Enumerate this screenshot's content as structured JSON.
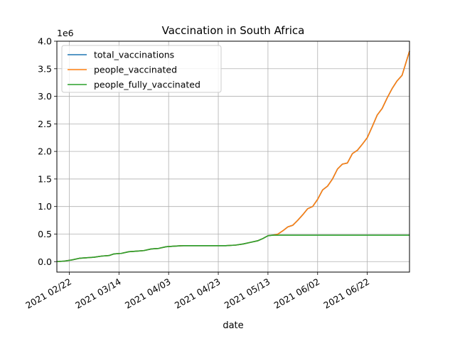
{
  "chart_data": {
    "type": "line",
    "title": "Vaccination in South Africa",
    "xlabel": "date",
    "ylabel": "",
    "y_multiplier_label": "1e6",
    "xlim": [
      "2021-02-17",
      "2021-07-09"
    ],
    "ylim": [
      -0.19,
      4.0
    ],
    "x_ticks": [
      "2021-02-22",
      "2021-03-14",
      "2021-04-03",
      "2021-04-23",
      "2021-05-13",
      "2021-06-02",
      "2021-06-22"
    ],
    "x_tick_labels": [
      "2021 02/22",
      "2021 03/14",
      "2021 04/03",
      "2021 04/23",
      "2021 05/13",
      "2021 06/02",
      "2021 06/22"
    ],
    "y_ticks": [
      0.0,
      0.5,
      1.0,
      1.5,
      2.0,
      2.5,
      3.0,
      3.5,
      4.0
    ],
    "y_tick_labels": [
      "0.0",
      "0.5",
      "1.0",
      "1.5",
      "2.0",
      "2.5",
      "3.0",
      "3.5",
      "4.0"
    ],
    "grid": true,
    "legend_position": "top-left",
    "y_units": "millions",
    "series": [
      {
        "name": "total_vaccinations",
        "color": "#1f77b4",
        "points": [
          [
            "2021-02-17",
            0.0
          ],
          [
            "2021-02-20",
            0.01
          ],
          [
            "2021-02-23",
            0.03
          ],
          [
            "2021-02-26",
            0.06
          ],
          [
            "2021-03-01",
            0.07
          ],
          [
            "2021-03-04",
            0.08
          ],
          [
            "2021-03-07",
            0.1
          ],
          [
            "2021-03-10",
            0.11
          ],
          [
            "2021-03-12",
            0.14
          ],
          [
            "2021-03-15",
            0.15
          ],
          [
            "2021-03-18",
            0.18
          ],
          [
            "2021-03-21",
            0.19
          ],
          [
            "2021-03-24",
            0.2
          ],
          [
            "2021-03-27",
            0.23
          ],
          [
            "2021-03-30",
            0.24
          ],
          [
            "2021-04-02",
            0.27
          ],
          [
            "2021-04-05",
            0.28
          ],
          [
            "2021-04-09",
            0.29
          ],
          [
            "2021-04-14",
            0.29
          ],
          [
            "2021-04-20",
            0.29
          ],
          [
            "2021-04-26",
            0.29
          ],
          [
            "2021-04-30",
            0.3
          ],
          [
            "2021-05-03",
            0.32
          ],
          [
            "2021-05-06",
            0.35
          ],
          [
            "2021-05-09",
            0.38
          ],
          [
            "2021-05-11",
            0.42
          ],
          [
            "2021-05-13",
            0.47
          ],
          [
            "2021-05-15",
            0.48
          ],
          [
            "2021-05-17",
            0.5
          ],
          [
            "2021-05-19",
            0.56
          ],
          [
            "2021-05-21",
            0.63
          ],
          [
            "2021-05-23",
            0.66
          ],
          [
            "2021-05-25",
            0.75
          ],
          [
            "2021-05-27",
            0.85
          ],
          [
            "2021-05-29",
            0.96
          ],
          [
            "2021-05-31",
            1.0
          ],
          [
            "2021-06-02",
            1.13
          ],
          [
            "2021-06-04",
            1.3
          ],
          [
            "2021-06-06",
            1.37
          ],
          [
            "2021-06-08",
            1.5
          ],
          [
            "2021-06-10",
            1.68
          ],
          [
            "2021-06-12",
            1.77
          ],
          [
            "2021-06-14",
            1.79
          ],
          [
            "2021-06-16",
            1.96
          ],
          [
            "2021-06-18",
            2.02
          ],
          [
            "2021-06-20",
            2.13
          ],
          [
            "2021-06-22",
            2.25
          ],
          [
            "2021-06-24",
            2.45
          ],
          [
            "2021-06-26",
            2.66
          ],
          [
            "2021-06-28",
            2.78
          ],
          [
            "2021-06-30",
            2.97
          ],
          [
            "2021-07-02",
            3.14
          ],
          [
            "2021-07-04",
            3.28
          ],
          [
            "2021-07-06",
            3.38
          ],
          [
            "2021-07-09",
            3.82
          ]
        ]
      },
      {
        "name": "people_vaccinated",
        "color": "#ff7f0e",
        "points": [
          [
            "2021-02-17",
            0.0
          ],
          [
            "2021-02-20",
            0.01
          ],
          [
            "2021-02-23",
            0.03
          ],
          [
            "2021-02-26",
            0.06
          ],
          [
            "2021-03-01",
            0.07
          ],
          [
            "2021-03-04",
            0.08
          ],
          [
            "2021-03-07",
            0.1
          ],
          [
            "2021-03-10",
            0.11
          ],
          [
            "2021-03-12",
            0.14
          ],
          [
            "2021-03-15",
            0.15
          ],
          [
            "2021-03-18",
            0.18
          ],
          [
            "2021-03-21",
            0.19
          ],
          [
            "2021-03-24",
            0.2
          ],
          [
            "2021-03-27",
            0.23
          ],
          [
            "2021-03-30",
            0.24
          ],
          [
            "2021-04-02",
            0.27
          ],
          [
            "2021-04-05",
            0.28
          ],
          [
            "2021-04-09",
            0.29
          ],
          [
            "2021-04-14",
            0.29
          ],
          [
            "2021-04-20",
            0.29
          ],
          [
            "2021-04-26",
            0.29
          ],
          [
            "2021-04-30",
            0.3
          ],
          [
            "2021-05-03",
            0.32
          ],
          [
            "2021-05-06",
            0.35
          ],
          [
            "2021-05-09",
            0.38
          ],
          [
            "2021-05-11",
            0.42
          ],
          [
            "2021-05-13",
            0.47
          ],
          [
            "2021-05-15",
            0.48
          ],
          [
            "2021-05-17",
            0.5
          ],
          [
            "2021-05-19",
            0.56
          ],
          [
            "2021-05-21",
            0.63
          ],
          [
            "2021-05-23",
            0.66
          ],
          [
            "2021-05-25",
            0.75
          ],
          [
            "2021-05-27",
            0.85
          ],
          [
            "2021-05-29",
            0.96
          ],
          [
            "2021-05-31",
            1.0
          ],
          [
            "2021-06-02",
            1.13
          ],
          [
            "2021-06-04",
            1.3
          ],
          [
            "2021-06-06",
            1.37
          ],
          [
            "2021-06-08",
            1.5
          ],
          [
            "2021-06-10",
            1.68
          ],
          [
            "2021-06-12",
            1.77
          ],
          [
            "2021-06-14",
            1.79
          ],
          [
            "2021-06-16",
            1.96
          ],
          [
            "2021-06-18",
            2.02
          ],
          [
            "2021-06-20",
            2.13
          ],
          [
            "2021-06-22",
            2.25
          ],
          [
            "2021-06-24",
            2.45
          ],
          [
            "2021-06-26",
            2.66
          ],
          [
            "2021-06-28",
            2.78
          ],
          [
            "2021-06-30",
            2.97
          ],
          [
            "2021-07-02",
            3.14
          ],
          [
            "2021-07-04",
            3.28
          ],
          [
            "2021-07-06",
            3.38
          ],
          [
            "2021-07-09",
            3.82
          ]
        ]
      },
      {
        "name": "people_fully_vaccinated",
        "color": "#2ca02c",
        "points": [
          [
            "2021-02-17",
            0.0
          ],
          [
            "2021-02-20",
            0.01
          ],
          [
            "2021-02-23",
            0.03
          ],
          [
            "2021-02-26",
            0.06
          ],
          [
            "2021-03-01",
            0.07
          ],
          [
            "2021-03-04",
            0.08
          ],
          [
            "2021-03-07",
            0.1
          ],
          [
            "2021-03-10",
            0.11
          ],
          [
            "2021-03-12",
            0.14
          ],
          [
            "2021-03-15",
            0.15
          ],
          [
            "2021-03-18",
            0.18
          ],
          [
            "2021-03-21",
            0.19
          ],
          [
            "2021-03-24",
            0.2
          ],
          [
            "2021-03-27",
            0.23
          ],
          [
            "2021-03-30",
            0.24
          ],
          [
            "2021-04-02",
            0.27
          ],
          [
            "2021-04-05",
            0.28
          ],
          [
            "2021-04-09",
            0.29
          ],
          [
            "2021-04-14",
            0.29
          ],
          [
            "2021-04-20",
            0.29
          ],
          [
            "2021-04-26",
            0.29
          ],
          [
            "2021-04-30",
            0.3
          ],
          [
            "2021-05-03",
            0.32
          ],
          [
            "2021-05-06",
            0.35
          ],
          [
            "2021-05-09",
            0.38
          ],
          [
            "2021-05-11",
            0.42
          ],
          [
            "2021-05-13",
            0.47
          ],
          [
            "2021-05-15",
            0.48
          ],
          [
            "2021-05-20",
            0.48
          ],
          [
            "2021-06-01",
            0.48
          ],
          [
            "2021-06-15",
            0.48
          ],
          [
            "2021-07-01",
            0.48
          ],
          [
            "2021-07-09",
            0.48
          ]
        ]
      }
    ]
  }
}
